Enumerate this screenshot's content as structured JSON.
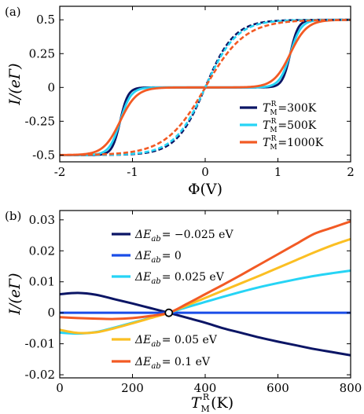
{
  "chart_data": [
    {
      "type": "line",
      "panel_label": "(a)",
      "xlabel": "Φ(V)",
      "ylabel": "I/(eΓ)",
      "xlim": [
        -2,
        2
      ],
      "ylim": [
        -0.55,
        0.6
      ],
      "xticks": [
        -2,
        -1,
        0,
        1,
        2
      ],
      "xtick_labels": [
        "-2",
        "-1",
        "0",
        "1",
        "2"
      ],
      "yticks": [
        -0.5,
        -0.25,
        0,
        0.25,
        0.5
      ],
      "ytick_labels": [
        "-0.5",
        "-0.25",
        "0",
        "0.25",
        "0.5"
      ],
      "legend_position": "lower-right",
      "series": [
        {
          "name": "300K",
          "legend_prefix": "T",
          "legend_sub": "M",
          "legend_sup": "R",
          "color": "#0b1565",
          "style": "solid",
          "step_center": 1.17,
          "step_width": 0.055
        },
        {
          "name": "500K",
          "legend_prefix": "T",
          "legend_sub": "M",
          "legend_sup": "R",
          "color": "#26d4f5",
          "style": "solid",
          "step_center": 1.17,
          "step_width": 0.075
        },
        {
          "name": "1000K",
          "legend_prefix": "T",
          "legend_sub": "M",
          "legend_sup": "R",
          "color": "#f25a24",
          "style": "solid",
          "step_center": 1.17,
          "step_width": 0.115
        },
        {
          "name": "",
          "color": "#0b1565",
          "style": "dashed",
          "slope_width": 0.25
        },
        {
          "name": "",
          "color": "#26d4f5",
          "style": "dashed",
          "slope_width": 0.27
        },
        {
          "name": "",
          "color": "#f25a24",
          "style": "dashed",
          "slope_width": 0.34
        }
      ]
    },
    {
      "type": "line",
      "panel_label": "(b)",
      "xlabel": "(K)",
      "xlabel_prefix": "T",
      "xlabel_sub": "M",
      "xlabel_sup": "R",
      "ylabel": "I/(eΓ)",
      "xlim": [
        0,
        800
      ],
      "ylim": [
        -0.021,
        0.033
      ],
      "xticks": [
        0,
        200,
        400,
        600,
        800
      ],
      "xtick_labels": [
        "0",
        "200",
        "400",
        "600",
        "800"
      ],
      "yticks": [
        -0.02,
        -0.01,
        0,
        0.01,
        0.02,
        0.03
      ],
      "ytick_labels": [
        "-0.02",
        "-0.01",
        "0",
        "0.01",
        "0.02",
        "0.03"
      ],
      "legend_position": "left",
      "crossing_point": [
        300,
        0
      ],
      "series": [
        {
          "name": "= −0.025 eV",
          "legend_prefix": "ΔE",
          "legend_sub": "ab",
          "color": "#0b1565",
          "x": [
            0,
            50,
            100,
            150,
            200,
            250,
            300,
            350,
            400,
            450,
            500,
            550,
            600,
            650,
            700,
            750,
            800
          ],
          "y": [
            0.006,
            0.0064,
            0.0058,
            0.0044,
            0.003,
            0.0015,
            0.0,
            -0.0016,
            -0.0032,
            -0.005,
            -0.0065,
            -0.008,
            -0.0093,
            -0.0105,
            -0.0117,
            -0.0127,
            -0.0137
          ]
        },
        {
          "name": "= 0",
          "legend_prefix": "ΔE",
          "legend_sub": "ab",
          "color": "#1a4de8",
          "x": [
            0,
            800
          ],
          "y": [
            0.0,
            0.0
          ]
        },
        {
          "name": "= 0.025 eV",
          "legend_prefix": "ΔE",
          "legend_sub": "ab",
          "color": "#26d4f5",
          "x": [
            0,
            50,
            100,
            150,
            200,
            250,
            300,
            350,
            400,
            450,
            500,
            550,
            600,
            650,
            700,
            750,
            800
          ],
          "y": [
            -0.0064,
            -0.0067,
            -0.0062,
            -0.0048,
            -0.0032,
            -0.0016,
            0.0,
            0.0018,
            0.0035,
            0.0052,
            0.0068,
            0.0083,
            0.0096,
            0.0108,
            0.0119,
            0.0128,
            0.0136
          ]
        },
        {
          "name": "= 0.05 eV",
          "legend_prefix": "ΔE",
          "legend_sub": "ab",
          "color": "#fbbf23",
          "x": [
            0,
            50,
            100,
            150,
            200,
            250,
            300,
            350,
            400,
            450,
            500,
            550,
            600,
            650,
            700,
            750,
            800
          ],
          "y": [
            -0.0055,
            -0.0065,
            -0.0063,
            -0.005,
            -0.0034,
            -0.0017,
            0.0,
            0.0024,
            0.0048,
            0.0072,
            0.0096,
            0.012,
            0.0145,
            0.017,
            0.0195,
            0.0218,
            0.0238
          ]
        },
        {
          "name": "= 0.1 eV",
          "legend_prefix": "ΔE",
          "legend_sub": "ab",
          "color": "#f25a24",
          "x": [
            0,
            50,
            100,
            150,
            200,
            250,
            300,
            350,
            400,
            450,
            500,
            550,
            600,
            650,
            700,
            750,
            800
          ],
          "y": [
            -0.0014,
            -0.0017,
            -0.0019,
            -0.002,
            -0.0017,
            -0.001,
            0.0,
            0.0029,
            0.006,
            0.0091,
            0.0123,
            0.0156,
            0.0189,
            0.0222,
            0.0255,
            0.0275,
            0.0295
          ]
        }
      ]
    }
  ]
}
